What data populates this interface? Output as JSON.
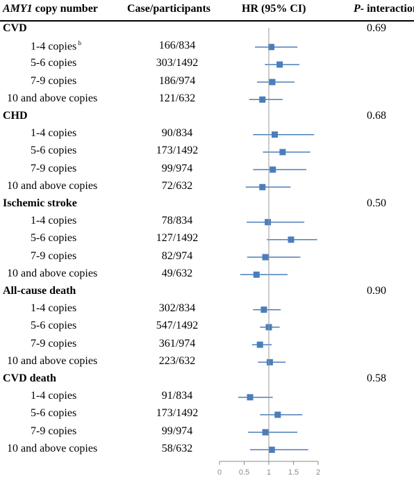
{
  "header": {
    "col1_gene": "AMY1",
    "col1_rest": " copy number",
    "col2": "Case/participants",
    "col3": "HR (95% CI)",
    "col4_italic": "P-",
    "col4_rest": " interaction"
  },
  "footnote_mark": "b",
  "chart_data": {
    "type": "forest",
    "xlim": [
      0,
      2
    ],
    "x_ticks": [
      "0",
      "0.5",
      "1",
      "1.5",
      "2"
    ],
    "reference_line": 1,
    "color": "#4a7ebb",
    "groups": [
      {
        "name": "CVD",
        "p_interaction": "0.69",
        "rows": [
          {
            "label": "1-4 copies",
            "cases": "166/834",
            "hr": 1.05,
            "lo": 0.72,
            "hi": 1.58
          },
          {
            "label": "5-6 copies",
            "cases": "303/1492",
            "hr": 1.22,
            "lo": 0.92,
            "hi": 1.62
          },
          {
            "label": "7-9 copies",
            "cases": "186/974",
            "hr": 1.07,
            "lo": 0.76,
            "hi": 1.52
          },
          {
            "label": "10 and above copies",
            "cases": "121/632",
            "hr": 0.87,
            "lo": 0.6,
            "hi": 1.28
          }
        ]
      },
      {
        "name": "CHD",
        "p_interaction": "0.68",
        "rows": [
          {
            "label": "1-4 copies",
            "cases": "90/834",
            "hr": 1.12,
            "lo": 0.68,
            "hi": 1.92
          },
          {
            "label": "5-6 copies",
            "cases": "173/1492",
            "hr": 1.28,
            "lo": 0.88,
            "hi": 1.84
          },
          {
            "label": "7-9 copies",
            "cases": "99/974",
            "hr": 1.08,
            "lo": 0.68,
            "hi": 1.76
          },
          {
            "label": "10 and above copies",
            "cases": "72/632",
            "hr": 0.87,
            "lo": 0.53,
            "hi": 1.44
          }
        ]
      },
      {
        "name": "Ischemic stroke",
        "p_interaction": "0.50",
        "rows": [
          {
            "label": "1-4 copies",
            "cases": "78/834",
            "hr": 0.98,
            "lo": 0.55,
            "hi": 1.72
          },
          {
            "label": "5-6 copies",
            "cases": "127/1492",
            "hr": 1.45,
            "lo": 0.96,
            "hi": 1.98
          },
          {
            "label": "7-9 copies",
            "cases": "82/974",
            "hr": 0.93,
            "lo": 0.56,
            "hi": 1.64
          },
          {
            "label": "10 and above copies",
            "cases": "49/632",
            "hr": 0.75,
            "lo": 0.42,
            "hi": 1.38
          }
        ]
      },
      {
        "name": "All-cause death",
        "p_interaction": "0.90",
        "rows": [
          {
            "label": "1-4 copies",
            "cases": "302/834",
            "hr": 0.9,
            "lo": 0.68,
            "hi": 1.24
          },
          {
            "label": "5-6 copies",
            "cases": "547/1492",
            "hr": 1.0,
            "lo": 0.82,
            "hi": 1.22
          },
          {
            "label": "7-9 copies",
            "cases": "361/974",
            "hr": 0.82,
            "lo": 0.66,
            "hi": 1.06
          },
          {
            "label": "10 and above copies",
            "cases": "223/632",
            "hr": 1.02,
            "lo": 0.78,
            "hi": 1.34
          }
        ]
      },
      {
        "name": "CVD death",
        "p_interaction": "0.58",
        "rows": [
          {
            "label": "1-4 copies",
            "cases": "91/834",
            "hr": 0.62,
            "lo": 0.38,
            "hi": 1.08
          },
          {
            "label": "5-6 copies",
            "cases": "173/1492",
            "hr": 1.18,
            "lo": 0.82,
            "hi": 1.68
          },
          {
            "label": "7-9 copies",
            "cases": "99/974",
            "hr": 0.93,
            "lo": 0.58,
            "hi": 1.58
          },
          {
            "label": "10 and above copies",
            "cases": "58/632",
            "hr": 1.06,
            "lo": 0.62,
            "hi": 1.8
          }
        ]
      }
    ]
  }
}
